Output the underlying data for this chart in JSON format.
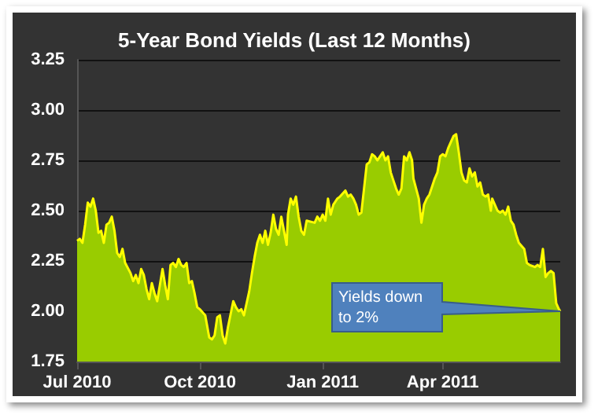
{
  "chart_data": {
    "type": "area",
    "title": "5-Year Bond Yields (Last 12 Months)",
    "x": [
      "2010-07-01",
      "2010-07-03",
      "2010-07-05",
      "2010-07-07",
      "2010-07-09",
      "2010-07-11",
      "2010-07-13",
      "2010-07-15",
      "2010-07-17",
      "2010-07-19",
      "2010-07-21",
      "2010-07-23",
      "2010-07-25",
      "2010-07-27",
      "2010-07-29",
      "2010-07-31",
      "2010-08-02",
      "2010-08-04",
      "2010-08-06",
      "2010-08-10",
      "2010-08-12",
      "2010-08-14",
      "2010-08-16",
      "2010-08-18",
      "2010-08-20",
      "2010-08-22",
      "2010-08-24",
      "2010-08-26",
      "2010-08-28",
      "2010-08-30",
      "2010-09-01",
      "2010-09-03",
      "2010-09-05",
      "2010-09-07",
      "2010-09-09",
      "2010-09-11",
      "2010-09-13",
      "2010-09-15",
      "2010-09-17",
      "2010-09-19",
      "2010-09-21",
      "2010-09-23",
      "2010-09-25",
      "2010-09-27",
      "2010-09-29",
      "2010-10-01",
      "2010-10-05",
      "2010-10-08",
      "2010-10-10",
      "2010-10-12",
      "2010-10-14",
      "2010-10-16",
      "2010-10-18",
      "2010-10-20",
      "2010-10-22",
      "2010-10-26",
      "2010-10-28",
      "2010-10-30",
      "2010-11-01",
      "2010-11-03",
      "2010-11-05",
      "2010-11-07",
      "2010-11-09",
      "2010-11-11",
      "2010-11-13",
      "2010-11-15",
      "2010-11-17",
      "2010-11-19",
      "2010-11-21",
      "2010-11-23",
      "2010-11-25",
      "2010-11-27",
      "2010-11-29",
      "2010-12-01",
      "2010-12-03",
      "2010-12-05",
      "2010-12-06",
      "2010-12-08",
      "2010-12-10",
      "2010-12-12",
      "2010-12-14",
      "2010-12-16",
      "2010-12-18",
      "2010-12-20",
      "2010-12-26",
      "2010-12-28",
      "2010-12-30",
      "2011-01-01",
      "2011-01-03",
      "2011-01-05",
      "2011-01-07",
      "2011-01-09",
      "2011-01-12",
      "2011-01-14",
      "2011-01-18",
      "2011-01-20",
      "2011-01-22",
      "2011-01-24",
      "2011-01-26",
      "2011-01-28",
      "2011-01-30",
      "2011-02-01",
      "2011-02-03",
      "2011-02-05",
      "2011-02-07",
      "2011-02-09",
      "2011-02-11",
      "2011-02-13",
      "2011-02-15",
      "2011-02-17",
      "2011-02-19",
      "2011-02-21",
      "2011-02-23",
      "2011-02-25",
      "2011-02-27",
      "2011-03-01",
      "2011-03-03",
      "2011-03-05",
      "2011-03-07",
      "2011-03-09",
      "2011-03-10",
      "2011-03-12",
      "2011-03-14",
      "2011-03-16",
      "2011-03-18",
      "2011-03-20",
      "2011-03-22",
      "2011-03-24",
      "2011-03-26",
      "2011-03-28",
      "2011-03-30",
      "2011-04-01",
      "2011-04-03",
      "2011-04-05",
      "2011-04-07",
      "2011-04-09",
      "2011-04-11",
      "2011-04-13",
      "2011-04-15",
      "2011-04-17",
      "2011-04-19",
      "2011-04-21",
      "2011-04-23",
      "2011-04-25",
      "2011-04-27",
      "2011-04-29",
      "2011-05-01",
      "2011-05-03",
      "2011-05-05",
      "2011-05-07",
      "2011-05-08",
      "2011-05-12",
      "2011-05-14",
      "2011-05-16",
      "2011-05-18",
      "2011-05-20",
      "2011-05-22",
      "2011-05-24",
      "2011-05-26",
      "2011-05-28",
      "2011-06-01",
      "2011-06-03",
      "2011-06-05",
      "2011-06-09",
      "2011-06-11",
      "2011-06-13",
      "2011-06-15",
      "2011-06-17",
      "2011-06-19",
      "2011-06-21",
      "2011-06-23",
      "2011-06-25",
      "2011-06-27",
      "2011-06-28"
    ],
    "values": [
      2.35,
      2.36,
      2.34,
      2.43,
      2.54,
      2.52,
      2.56,
      2.5,
      2.39,
      2.4,
      2.34,
      2.43,
      2.44,
      2.47,
      2.4,
      2.29,
      2.27,
      2.31,
      2.24,
      2.19,
      2.15,
      2.18,
      2.14,
      2.21,
      2.18,
      2.11,
      2.06,
      2.14,
      2.09,
      2.05,
      2.13,
      2.21,
      2.13,
      2.06,
      2.23,
      2.24,
      2.22,
      2.26,
      2.23,
      2.22,
      2.24,
      2.14,
      2.15,
      2.09,
      2.02,
      2.01,
      1.98,
      1.87,
      1.86,
      1.88,
      1.97,
      1.98,
      1.88,
      1.84,
      1.92,
      2.05,
      2.02,
      2.0,
      2.01,
      1.98,
      2.04,
      2.1,
      2.19,
      2.27,
      2.34,
      2.38,
      2.34,
      2.4,
      2.33,
      2.39,
      2.48,
      2.41,
      2.38,
      2.47,
      2.4,
      2.33,
      2.48,
      2.56,
      2.53,
      2.57,
      2.47,
      2.4,
      2.38,
      2.45,
      2.44,
      2.47,
      2.45,
      2.48,
      2.45,
      2.56,
      2.48,
      2.53,
      2.56,
      2.57,
      2.6,
      2.57,
      2.58,
      2.56,
      2.53,
      2.48,
      2.49,
      2.61,
      2.73,
      2.74,
      2.78,
      2.77,
      2.75,
      2.77,
      2.79,
      2.75,
      2.77,
      2.69,
      2.65,
      2.61,
      2.58,
      2.61,
      2.77,
      2.75,
      2.79,
      2.75,
      2.66,
      2.61,
      2.56,
      2.44,
      2.53,
      2.56,
      2.58,
      2.62,
      2.66,
      2.69,
      2.77,
      2.78,
      2.77,
      2.81,
      2.84,
      2.87,
      2.88,
      2.79,
      2.69,
      2.65,
      2.64,
      2.71,
      2.67,
      2.69,
      2.62,
      2.64,
      2.58,
      2.57,
      2.58,
      2.5,
      2.56,
      2.5,
      2.49,
      2.5,
      2.48,
      2.52,
      2.45,
      2.43,
      2.38,
      2.34,
      2.31,
      2.24,
      2.23,
      2.22,
      2.23,
      2.22,
      2.31,
      2.17,
      2.19,
      2.2,
      2.19,
      2.04,
      2.01,
      2.0
    ],
    "color": "#99cc00",
    "xlim": [
      "2010-07-01",
      "2011-06-28"
    ],
    "xticks": [
      {
        "value": "2010-07-01",
        "label": "Jul 2010"
      },
      {
        "value": "2010-10-01",
        "label": "Oct 2010"
      },
      {
        "value": "2011-01-01",
        "label": "Jan 2011"
      },
      {
        "value": "2011-04-01",
        "label": "Apr 2011"
      }
    ],
    "ylim": [
      1.75,
      3.25
    ],
    "yticks": [
      {
        "value": 1.75,
        "label": "1.75"
      },
      {
        "value": 2,
        "label": "2.00"
      },
      {
        "value": 2.25,
        "label": "2.25"
      },
      {
        "value": 2.5,
        "label": "2.50"
      },
      {
        "value": 2.75,
        "label": "2.75"
      },
      {
        "value": 3,
        "label": "3.00"
      },
      {
        "value": 3.25,
        "label": "3.25"
      }
    ],
    "grid": "y",
    "marker": "none",
    "annotations": [
      "Yields down to 2%"
    ]
  }
}
